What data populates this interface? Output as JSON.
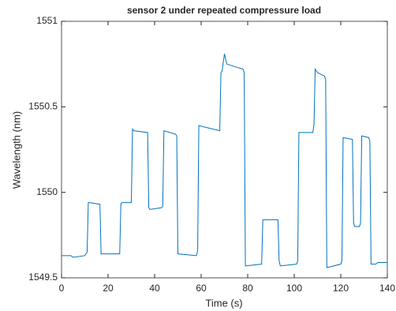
{
  "chart_data": {
    "type": "line",
    "title": "sensor 2 under repeated compressure load",
    "x_label": "Time (s)",
    "y_label": "Wavelength (nm)",
    "x": [
      0,
      4,
      5,
      10,
      11,
      11.5,
      12,
      16.5,
      17,
      17.5,
      25,
      25.5,
      26,
      30,
      30.5,
      31,
      37,
      37.5,
      38,
      43,
      43.5,
      44,
      49,
      49.5,
      50,
      58,
      58.5,
      59,
      68,
      68.5,
      69,
      70,
      71,
      78,
      78.5,
      79,
      86,
      86.5,
      87,
      93,
      93.5,
      94,
      101,
      101.5,
      102,
      108,
      108.5,
      109,
      110,
      113,
      113.5,
      114,
      120,
      120.5,
      121,
      125,
      125.5,
      126,
      128,
      128.5,
      129,
      132,
      132.5,
      133,
      135,
      136,
      140
    ],
    "series": [
      {
        "color": "#0072bd",
        "values": [
          1549.63,
          1549.63,
          1549.62,
          1549.63,
          1549.65,
          1549.94,
          1549.94,
          1549.93,
          1549.64,
          1549.64,
          1549.64,
          1549.93,
          1549.94,
          1549.94,
          1550.37,
          1550.36,
          1550.35,
          1549.91,
          1549.9,
          1549.91,
          1549.92,
          1550.36,
          1550.34,
          1550.33,
          1549.64,
          1549.63,
          1549.66,
          1550.39,
          1550.36,
          1550.7,
          1550.71,
          1550.81,
          1550.75,
          1550.72,
          1550.7,
          1549.57,
          1549.58,
          1549.84,
          1549.84,
          1549.84,
          1549.6,
          1549.57,
          1549.58,
          1549.6,
          1550.35,
          1550.35,
          1550.4,
          1550.72,
          1550.7,
          1550.68,
          1550.66,
          1549.56,
          1549.58,
          1549.6,
          1550.32,
          1550.31,
          1549.82,
          1549.8,
          1549.8,
          1549.82,
          1550.33,
          1550.32,
          1550.3,
          1549.58,
          1549.58,
          1549.59,
          1549.59
        ]
      }
    ],
    "xlim": [
      0,
      140
    ],
    "xticks": [
      0,
      20,
      40,
      60,
      80,
      100,
      120,
      140
    ],
    "ylim": [
      1549.5,
      1551
    ],
    "yticks": [
      1549.5,
      1550,
      1550.5,
      1551
    ],
    "grid": false
  }
}
